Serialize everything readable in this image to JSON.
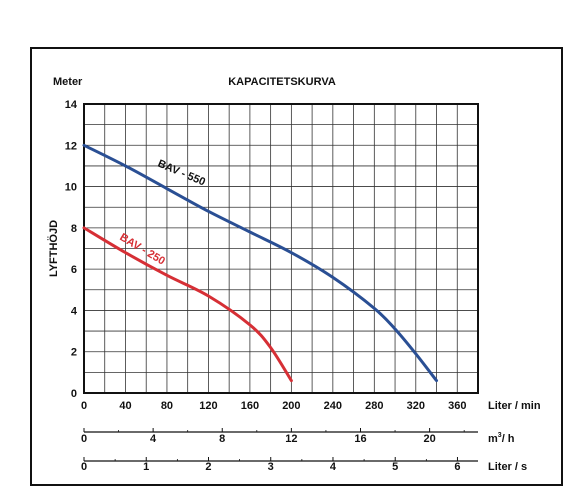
{
  "chart_data": {
    "type": "line",
    "title": "KAPACITETSKURVA",
    "y_unit": "Meter",
    "ylabel": "LYFTHÖJD",
    "ylim": [
      0,
      14
    ],
    "yticks": [
      0,
      2,
      4,
      6,
      8,
      10,
      12,
      14
    ],
    "grid": true,
    "x_axes": [
      {
        "unit": "Liter / min",
        "range": [
          0,
          380
        ],
        "ticks": [
          0,
          40,
          80,
          120,
          160,
          200,
          240,
          280,
          320,
          360
        ]
      },
      {
        "unit": "m³/ h",
        "unit_base": "m",
        "unit_sup": "3",
        "unit_rest": "/ h",
        "range": [
          0,
          22.8
        ],
        "ticks": [
          0,
          4,
          8,
          12,
          16,
          20
        ]
      },
      {
        "unit": "Liter / s",
        "range": [
          0,
          6.33
        ],
        "ticks": [
          0,
          1,
          2,
          3,
          4,
          5,
          6
        ]
      }
    ],
    "series": [
      {
        "name": "BAV - 550",
        "color": "#2a4f94",
        "x": [
          0,
          40,
          80,
          120,
          160,
          200,
          240,
          280,
          300,
          320,
          340
        ],
        "y": [
          12.0,
          11.0,
          9.9,
          8.8,
          7.8,
          6.8,
          5.6,
          4.1,
          3.1,
          1.9,
          0.6
        ]
      },
      {
        "name": "BAV - 250",
        "color": "#d62f35",
        "x": [
          0,
          40,
          80,
          120,
          160,
          180,
          200
        ],
        "y": [
          8.0,
          6.8,
          5.7,
          4.7,
          3.3,
          2.2,
          0.6
        ]
      }
    ]
  }
}
